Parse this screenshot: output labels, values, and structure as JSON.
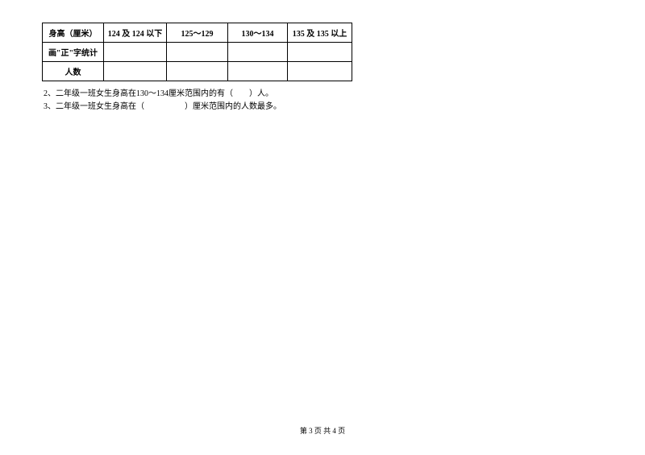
{
  "table": {
    "headers": {
      "col1": "身高（厘米）",
      "col2": "124 及 124 以下",
      "col3": "125～129",
      "col4": "130～134",
      "col5": "135 及 135 以上"
    },
    "row2_label": "画\"正\"字统计",
    "row3_label": "人数"
  },
  "questions": {
    "q2": "2、二年级一班女生身高在130～134厘米范围内的有（　　）人。",
    "q3": "3、二年级一班女生身高在（　　　　　）厘米范围内的人数最多。"
  },
  "footer": "第 3 页 共 4 页"
}
